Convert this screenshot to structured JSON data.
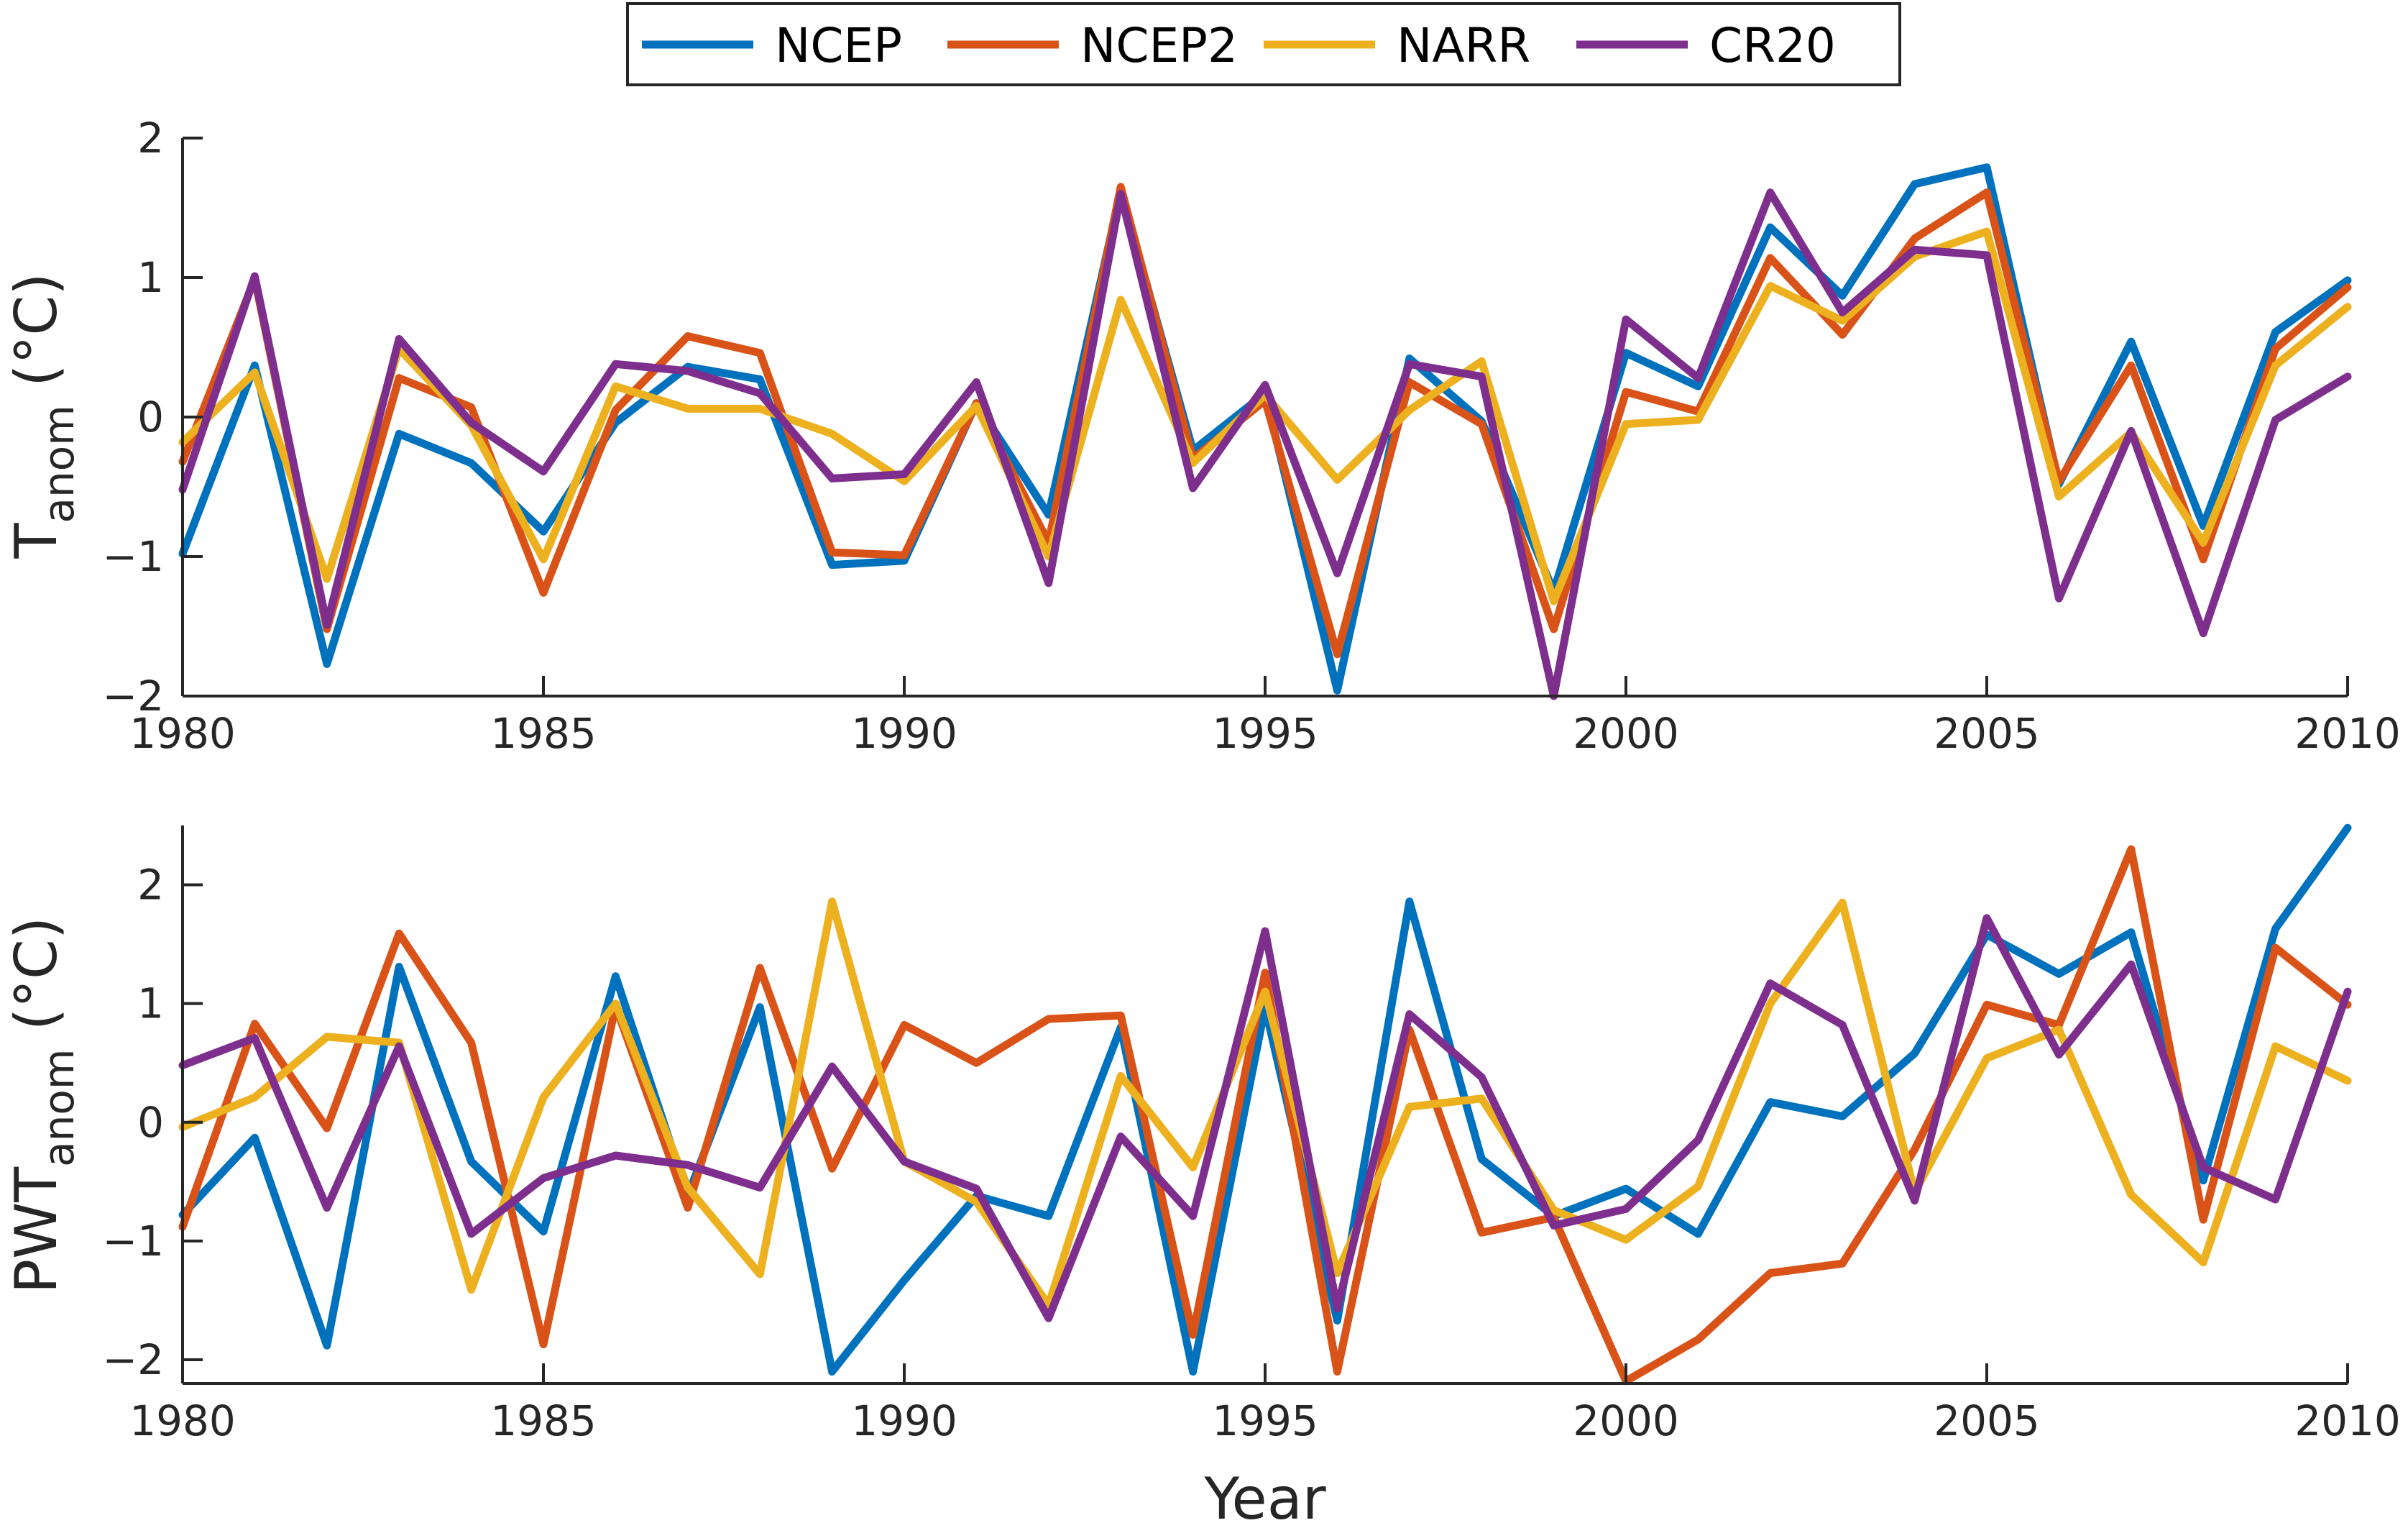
{
  "legend": [
    "NCEP",
    "NCEP2",
    "NARR",
    "CR20"
  ],
  "colors": [
    "#0072BD",
    "#D95319",
    "#EDB120",
    "#7E2F8E"
  ],
  "chart_data": [
    {
      "type": "line",
      "ylabel_main": "T",
      "ylabel_sub": "anom",
      "ylabel_unit": "(°C)",
      "xlabel": "",
      "xlim": [
        1980,
        2010
      ],
      "ylim": [
        -2,
        2
      ],
      "xticks": [
        "1980",
        "1985",
        "1990",
        "1995",
        "2000",
        "2005",
        "2010"
      ],
      "yticks": [
        "2",
        "1",
        "0",
        "−1",
        "−2"
      ],
      "x": [
        1980,
        1981,
        1982,
        1983,
        1984,
        1985,
        1986,
        1987,
        1988,
        1989,
        1990,
        1991,
        1992,
        1993,
        1994,
        1995,
        1996,
        1997,
        1998,
        1999,
        2000,
        2001,
        2002,
        2003,
        2004,
        2005,
        2006,
        2007,
        2008,
        2009,
        2010
      ],
      "series": [
        {
          "name": "NCEP",
          "values": [
            -0.98,
            0.37,
            -1.77,
            -0.12,
            -0.33,
            -0.82,
            -0.04,
            0.36,
            0.27,
            -1.06,
            -1.03,
            0.1,
            -0.7,
            1.62,
            -0.24,
            0.17,
            -1.96,
            0.42,
            -0.03,
            -1.25,
            0.46,
            0.22,
            1.36,
            0.87,
            1.67,
            1.79,
            -0.48,
            0.54,
            -0.78,
            0.61,
            0.98
          ]
        },
        {
          "name": "NCEP2",
          "values": [
            -0.32,
            0.99,
            -1.52,
            0.28,
            0.07,
            -1.26,
            0.05,
            0.58,
            0.46,
            -0.97,
            -0.99,
            0.1,
            -0.9,
            1.65,
            -0.3,
            0.12,
            -1.7,
            0.25,
            -0.05,
            -1.52,
            0.18,
            0.04,
            1.14,
            0.59,
            1.28,
            1.61,
            -0.46,
            0.37,
            -1.02,
            0.49,
            0.93
          ]
        },
        {
          "name": "NARR",
          "values": [
            -0.18,
            0.32,
            -1.16,
            0.49,
            -0.06,
            -1.02,
            0.22,
            0.06,
            0.06,
            -0.12,
            -0.46,
            0.08,
            -1.0,
            0.84,
            -0.33,
            0.16,
            -0.45,
            0.05,
            0.4,
            -1.32,
            -0.05,
            -0.02,
            0.94,
            0.69,
            1.15,
            1.33,
            -0.57,
            -0.11,
            -0.9,
            0.37,
            0.79
          ]
        },
        {
          "name": "CR20",
          "values": [
            -0.52,
            1.01,
            -1.49,
            0.56,
            -0.04,
            -0.39,
            0.38,
            0.33,
            0.17,
            -0.44,
            -0.41,
            0.25,
            -1.19,
            1.6,
            -0.51,
            0.23,
            -1.12,
            0.38,
            0.29,
            -2.0,
            0.7,
            0.28,
            1.61,
            0.75,
            1.2,
            1.16,
            -1.3,
            -0.1,
            -1.55,
            -0.02,
            0.29
          ]
        }
      ]
    },
    {
      "type": "line",
      "ylabel_main": "PWT",
      "ylabel_sub": "anom",
      "ylabel_unit": "(°C)",
      "xlabel": "Year",
      "xlim": [
        1980,
        2010
      ],
      "ylim": [
        -2.2,
        2.5
      ],
      "xticks": [
        "1980",
        "1985",
        "1990",
        "1995",
        "2000",
        "2005",
        "2010"
      ],
      "yticks": [
        "2",
        "1",
        "0",
        "−1",
        "−2"
      ],
      "x": [
        1980,
        1981,
        1982,
        1983,
        1984,
        1985,
        1986,
        1987,
        1988,
        1989,
        1990,
        1991,
        1992,
        1993,
        1994,
        1995,
        1996,
        1997,
        1998,
        1999,
        2000,
        2001,
        2002,
        2003,
        2004,
        2005,
        2006,
        2007,
        2008,
        2009,
        2010
      ],
      "series": [
        {
          "name": "NCEP",
          "values": [
            -0.78,
            -0.13,
            -1.88,
            1.31,
            -0.33,
            -0.92,
            1.23,
            -0.62,
            0.97,
            -2.1,
            -1.33,
            -0.62,
            -0.79,
            0.8,
            -2.1,
            0.97,
            -1.67,
            1.86,
            -0.31,
            -0.79,
            -0.56,
            -0.94,
            0.17,
            0.05,
            0.58,
            1.58,
            1.25,
            1.6,
            -0.49,
            1.63,
            2.48
          ]
        },
        {
          "name": "NCEP2",
          "values": [
            -0.88,
            0.83,
            -0.05,
            1.59,
            0.67,
            -1.87,
            0.98,
            -0.72,
            1.3,
            -0.39,
            0.82,
            0.5,
            0.87,
            0.9,
            -1.79,
            1.26,
            -2.1,
            0.78,
            -0.93,
            -0.8,
            -2.18,
            -1.83,
            -1.27,
            -1.19,
            -0.23,
            0.99,
            0.82,
            2.3,
            -0.82,
            1.47,
            0.99
          ]
        },
        {
          "name": "NARR",
          "values": [
            -0.04,
            0.21,
            0.72,
            0.67,
            -1.41,
            0.21,
            1.0,
            -0.55,
            -1.28,
            1.86,
            -0.33,
            -0.67,
            -1.54,
            0.39,
            -0.38,
            1.1,
            -1.27,
            0.13,
            0.2,
            -0.74,
            -0.99,
            -0.54,
            1.0,
            1.85,
            -0.59,
            0.54,
            0.78,
            -0.61,
            -1.18,
            0.64,
            0.35
          ]
        },
        {
          "name": "CR20",
          "values": [
            0.48,
            0.71,
            -0.72,
            0.64,
            -0.94,
            -0.47,
            -0.28,
            -0.36,
            -0.55,
            0.47,
            -0.33,
            -0.56,
            -1.65,
            -0.12,
            -0.79,
            1.61,
            -1.57,
            0.91,
            0.38,
            -0.87,
            -0.73,
            -0.15,
            1.17,
            0.82,
            -0.66,
            1.72,
            0.57,
            1.33,
            -0.38,
            -0.65,
            1.1
          ]
        }
      ]
    }
  ]
}
